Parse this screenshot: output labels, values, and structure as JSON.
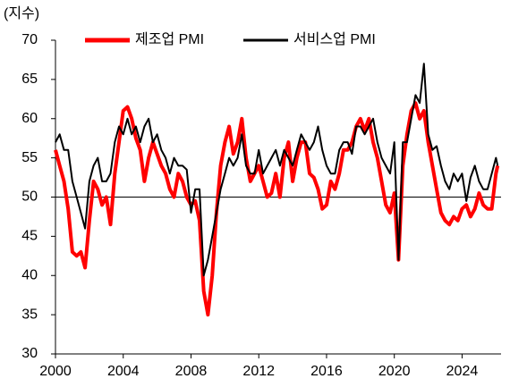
{
  "chart_data": {
    "type": "line",
    "y_label": "(지수)",
    "x": [
      2000,
      2000.25,
      2000.5,
      2000.75,
      2001,
      2001.25,
      2001.5,
      2001.75,
      2002,
      2002.25,
      2002.5,
      2002.75,
      2003,
      2003.25,
      2003.5,
      2003.75,
      2004,
      2004.25,
      2004.5,
      2004.75,
      2005,
      2005.25,
      2005.5,
      2005.75,
      2006,
      2006.25,
      2006.5,
      2006.75,
      2007,
      2007.25,
      2007.5,
      2007.75,
      2008,
      2008.25,
      2008.5,
      2008.75,
      2009,
      2009.25,
      2009.5,
      2009.75,
      2010,
      2010.25,
      2010.5,
      2010.75,
      2011,
      2011.25,
      2011.5,
      2011.75,
      2012,
      2012.25,
      2012.5,
      2012.75,
      2013,
      2013.25,
      2013.5,
      2013.75,
      2014,
      2014.25,
      2014.5,
      2014.75,
      2015,
      2015.25,
      2015.5,
      2015.75,
      2016,
      2016.25,
      2016.5,
      2016.75,
      2017,
      2017.25,
      2017.5,
      2017.75,
      2018,
      2018.25,
      2018.5,
      2018.75,
      2019,
      2019.25,
      2019.5,
      2019.75,
      2020,
      2020.25,
      2020.5,
      2020.75,
      2021,
      2021.25,
      2021.5,
      2021.75,
      2022,
      2022.25,
      2022.5,
      2022.75,
      2023,
      2023.25,
      2023.5,
      2023.75,
      2024,
      2024.25,
      2024.5,
      2024.75,
      2025,
      2025.25,
      2025.5,
      2025.75,
      2026,
      2026.1
    ],
    "series": [
      {
        "name": "제조업 PMI",
        "color": "#ff0000",
        "width": 4,
        "values": [
          56,
          54,
          52,
          48.5,
          43,
          42.5,
          43,
          41,
          47,
          52,
          51,
          49,
          50,
          46.5,
          53,
          57,
          61,
          61.5,
          60,
          57.5,
          56,
          52,
          55,
          57,
          55.5,
          54,
          53,
          51,
          50,
          53,
          52,
          50,
          49,
          49.5,
          47,
          38,
          35,
          40,
          48,
          54,
          57,
          59,
          55.5,
          57,
          60,
          55,
          52,
          53,
          54,
          52,
          50,
          50.5,
          53,
          50,
          55,
          57,
          52,
          55,
          57,
          57,
          53,
          52.5,
          51,
          48.5,
          49,
          52,
          51,
          53,
          56,
          56,
          57,
          59,
          60,
          58.5,
          60,
          57,
          55,
          52,
          49,
          48,
          50.5,
          42,
          54,
          58,
          61,
          62,
          60,
          61,
          57,
          54,
          51,
          48,
          47,
          46.5,
          47.5,
          47,
          48.5,
          49,
          47.5,
          48.5,
          50.5,
          49,
          48.5,
          48.5,
          53,
          54
        ]
      },
      {
        "name": "서비스업 PMI",
        "color": "#000000",
        "width": 2,
        "values": [
          57,
          58,
          56,
          56,
          52,
          50,
          48,
          46,
          52,
          54,
          55,
          52,
          52,
          53,
          57,
          59,
          58,
          60,
          58,
          59,
          57,
          59,
          60,
          57,
          58,
          56,
          55,
          53,
          55,
          54,
          54,
          53.5,
          48,
          51,
          51,
          40,
          42,
          45,
          48,
          51,
          53,
          55,
          54,
          55,
          58,
          54,
          53,
          53,
          56,
          53,
          54,
          55,
          56,
          54,
          56,
          55,
          54,
          56,
          58,
          57,
          56,
          57,
          59,
          56,
          54,
          53,
          53,
          56,
          57,
          57,
          55.5,
          59,
          59,
          58,
          59,
          60,
          57,
          55,
          54,
          53,
          57,
          42,
          57,
          57,
          60,
          63,
          62,
          67,
          58,
          56,
          56.5,
          54,
          52,
          51,
          53,
          52,
          53,
          49.5,
          52.5,
          54,
          52,
          51,
          51,
          53,
          55,
          54
        ]
      }
    ],
    "xlim": [
      2000,
      2026.3
    ],
    "xticks": [
      2000,
      2004,
      2008,
      2012,
      2016,
      2020,
      2024
    ],
    "ylim": [
      30,
      70
    ],
    "yticks": [
      30,
      35,
      40,
      45,
      50,
      55,
      60,
      65,
      70
    ],
    "reference_line": 50,
    "legend": "top"
  }
}
